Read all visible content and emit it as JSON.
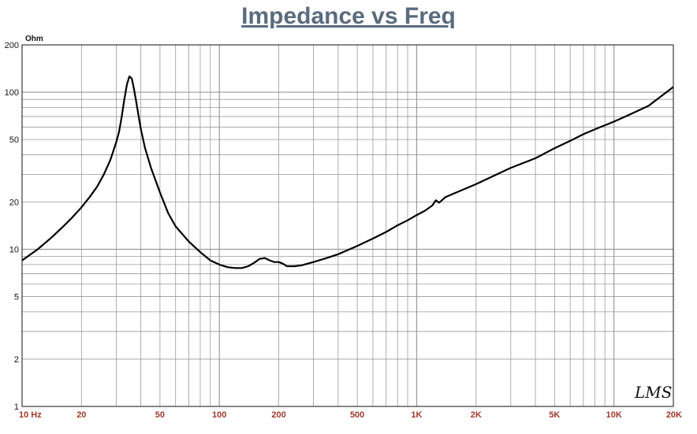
{
  "chart_data": {
    "type": "line",
    "title": "Impedance vs Freq",
    "ylabel": "Ohm",
    "xscale": "log",
    "yscale": "log",
    "xlim": [
      10,
      20000
    ],
    "ylim": [
      1,
      200
    ],
    "grid": true,
    "x_tick_labels": [
      {
        "value": 10,
        "label": "10  Hz"
      },
      {
        "value": 20,
        "label": "20"
      },
      {
        "value": 50,
        "label": "50"
      },
      {
        "value": 100,
        "label": "100"
      },
      {
        "value": 200,
        "label": "200"
      },
      {
        "value": 500,
        "label": "500"
      },
      {
        "value": 1000,
        "label": "1K"
      },
      {
        "value": 2000,
        "label": "2K"
      },
      {
        "value": 5000,
        "label": "5K"
      },
      {
        "value": 10000,
        "label": "10K"
      },
      {
        "value": 20000,
        "label": "20K"
      }
    ],
    "y_tick_labels": [
      {
        "value": 200,
        "label": "200"
      },
      {
        "value": 100,
        "label": "100"
      },
      {
        "value": 50,
        "label": "50"
      },
      {
        "value": 20,
        "label": "20"
      },
      {
        "value": 10,
        "label": "10"
      },
      {
        "value": 5,
        "label": "5"
      },
      {
        "value": 2,
        "label": "2"
      },
      {
        "value": 1,
        "label": "1"
      }
    ],
    "series": [
      {
        "color": "#000000",
        "points": [
          [
            10,
            8.5
          ],
          [
            12,
            10
          ],
          [
            14,
            11.8
          ],
          [
            16,
            13.8
          ],
          [
            18,
            16
          ],
          [
            20,
            18.5
          ],
          [
            22,
            21.5
          ],
          [
            24,
            25
          ],
          [
            26,
            30
          ],
          [
            28,
            37
          ],
          [
            30,
            48
          ],
          [
            31,
            56
          ],
          [
            32,
            70
          ],
          [
            33,
            90
          ],
          [
            34,
            112
          ],
          [
            35,
            126
          ],
          [
            36,
            122
          ],
          [
            37,
            103
          ],
          [
            38,
            85
          ],
          [
            39,
            70
          ],
          [
            40,
            58
          ],
          [
            42,
            44
          ],
          [
            45,
            33
          ],
          [
            50,
            23
          ],
          [
            55,
            17
          ],
          [
            60,
            14
          ],
          [
            70,
            11.2
          ],
          [
            80,
            9.6
          ],
          [
            90,
            8.5
          ],
          [
            100,
            8
          ],
          [
            110,
            7.7
          ],
          [
            120,
            7.6
          ],
          [
            130,
            7.6
          ],
          [
            140,
            7.8
          ],
          [
            150,
            8.2
          ],
          [
            160,
            8.7
          ],
          [
            170,
            8.8
          ],
          [
            180,
            8.5
          ],
          [
            190,
            8.3
          ],
          [
            200,
            8.3
          ],
          [
            210,
            8.1
          ],
          [
            220,
            7.8
          ],
          [
            240,
            7.8
          ],
          [
            260,
            7.9
          ],
          [
            300,
            8.3
          ],
          [
            350,
            8.8
          ],
          [
            400,
            9.3
          ],
          [
            500,
            10.5
          ],
          [
            600,
            11.7
          ],
          [
            700,
            12.9
          ],
          [
            800,
            14.2
          ],
          [
            900,
            15.3
          ],
          [
            1000,
            16.5
          ],
          [
            1100,
            17.6
          ],
          [
            1200,
            19
          ],
          [
            1250,
            20.5
          ],
          [
            1300,
            19.8
          ],
          [
            1400,
            21.5
          ],
          [
            1500,
            22.3
          ],
          [
            2000,
            26
          ],
          [
            3000,
            33
          ],
          [
            4000,
            38
          ],
          [
            5000,
            44
          ],
          [
            6000,
            49
          ],
          [
            7000,
            54
          ],
          [
            8000,
            58
          ],
          [
            10000,
            65
          ],
          [
            12000,
            72
          ],
          [
            15000,
            82
          ],
          [
            20000,
            108
          ]
        ]
      }
    ],
    "annotations": [
      "LMS"
    ]
  }
}
